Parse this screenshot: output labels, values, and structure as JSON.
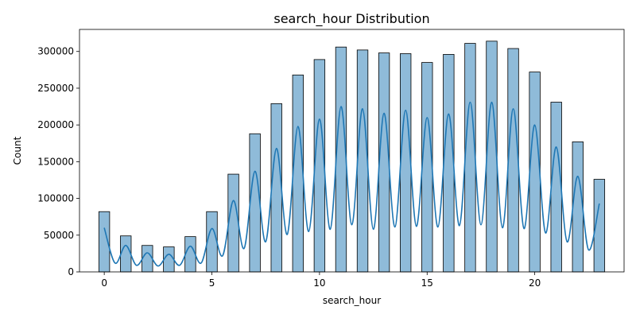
{
  "chart_data": {
    "type": "bar",
    "title": "search_hour Distribution",
    "xlabel": "search_hour",
    "ylabel": "Count",
    "xlim": [
      -1.15,
      24.15
    ],
    "ylim": [
      0,
      330000
    ],
    "xticks": [
      0,
      5,
      10,
      15,
      20
    ],
    "yticks": [
      0,
      50000,
      100000,
      150000,
      200000,
      250000,
      300000
    ],
    "grid": false,
    "bar_color": "#1f77b4",
    "bar_opacity": 0.5,
    "kde_color": "#1f77b4",
    "bars": [
      {
        "x": 0,
        "value": 82000
      },
      {
        "x": 1,
        "value": 49000
      },
      {
        "x": 2,
        "value": 36000
      },
      {
        "x": 3,
        "value": 34000
      },
      {
        "x": 4,
        "value": 48000
      },
      {
        "x": 5,
        "value": 82000
      },
      {
        "x": 6,
        "value": 133000
      },
      {
        "x": 7,
        "value": 188000
      },
      {
        "x": 8,
        "value": 229000
      },
      {
        "x": 9,
        "value": 268000
      },
      {
        "x": 10,
        "value": 289000
      },
      {
        "x": 11,
        "value": 306000
      },
      {
        "x": 12,
        "value": 302000
      },
      {
        "x": 13,
        "value": 298000
      },
      {
        "x": 14,
        "value": 297000
      },
      {
        "x": 15,
        "value": 285000
      },
      {
        "x": 16,
        "value": 296000
      },
      {
        "x": 17,
        "value": 311000
      },
      {
        "x": 18,
        "value": 314000
      },
      {
        "x": 19,
        "value": 304000
      },
      {
        "x": 20,
        "value": 272000
      },
      {
        "x": 21,
        "value": 231000
      },
      {
        "x": 22,
        "value": 177000
      },
      {
        "x": 23,
        "value": 126000
      }
    ],
    "kde_peaks": [
      {
        "x": 0,
        "value": 60000
      },
      {
        "x": 1,
        "value": 36000
      },
      {
        "x": 2,
        "value": 26000
      },
      {
        "x": 3,
        "value": 24000
      },
      {
        "x": 4,
        "value": 35000
      },
      {
        "x": 5,
        "value": 59000
      },
      {
        "x": 6,
        "value": 97000
      },
      {
        "x": 7,
        "value": 137000
      },
      {
        "x": 8,
        "value": 168000
      },
      {
        "x": 9,
        "value": 198000
      },
      {
        "x": 10,
        "value": 208000
      },
      {
        "x": 11,
        "value": 225000
      },
      {
        "x": 12,
        "value": 222000
      },
      {
        "x": 13,
        "value": 216000
      },
      {
        "x": 14,
        "value": 220000
      },
      {
        "x": 15,
        "value": 210000
      },
      {
        "x": 16,
        "value": 215000
      },
      {
        "x": 17,
        "value": 231000
      },
      {
        "x": 18,
        "value": 231000
      },
      {
        "x": 19,
        "value": 222000
      },
      {
        "x": 20,
        "value": 200000
      },
      {
        "x": 21,
        "value": 170000
      },
      {
        "x": 22,
        "value": 130000
      },
      {
        "x": 23,
        "value": 93000
      }
    ],
    "kde_troughs": [
      {
        "x": 0.5,
        "value": 12000
      },
      {
        "x": 1.5,
        "value": 9000
      },
      {
        "x": 2.5,
        "value": 8000
      },
      {
        "x": 3.5,
        "value": 9000
      },
      {
        "x": 4.5,
        "value": 12000
      },
      {
        "x": 5.5,
        "value": 22000
      },
      {
        "x": 6.5,
        "value": 32000
      },
      {
        "x": 7.5,
        "value": 41000
      },
      {
        "x": 8.5,
        "value": 51000
      },
      {
        "x": 9.5,
        "value": 55000
      },
      {
        "x": 10.5,
        "value": 58000
      },
      {
        "x": 11.5,
        "value": 64000
      },
      {
        "x": 12.5,
        "value": 58000
      },
      {
        "x": 13.5,
        "value": 61000
      },
      {
        "x": 14.5,
        "value": 62000
      },
      {
        "x": 15.5,
        "value": 61000
      },
      {
        "x": 16.5,
        "value": 63000
      },
      {
        "x": 17.5,
        "value": 64000
      },
      {
        "x": 18.5,
        "value": 60000
      },
      {
        "x": 19.5,
        "value": 59000
      },
      {
        "x": 20.5,
        "value": 53000
      },
      {
        "x": 21.5,
        "value": 41000
      },
      {
        "x": 22.5,
        "value": 30000
      }
    ]
  }
}
